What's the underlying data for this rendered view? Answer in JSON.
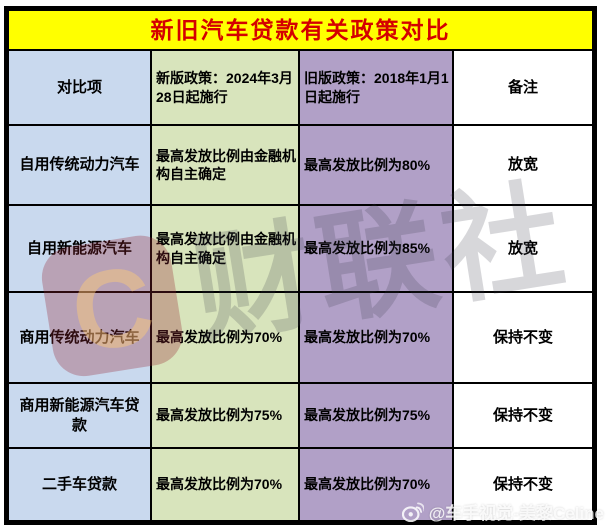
{
  "title": "新旧汽车贷款有关政策对比",
  "colors": {
    "title_bg": "#ffff00",
    "title_text": "#d40000",
    "col_item_bg": "#c9d9ee",
    "col_new_bg": "#d8e4bc",
    "col_old_bg": "#b1a0c7",
    "col_note_bg": "#ffffff",
    "border": "#000000"
  },
  "chart_data": {
    "type": "table",
    "title": "新旧汽车贷款有关政策对比",
    "columns": [
      "对比项",
      "新版政策：2024年3月28日起施行",
      "旧版政策：2018年1月1日起施行",
      "备注"
    ],
    "rows": [
      [
        "自用传统动力汽车",
        "最高发放比例由金融机构自主确定",
        "最高发放比例为80%",
        "放宽"
      ],
      [
        "自用新能源汽车",
        "最高发放比例由金融机构自主确定",
        "最高发放比例为85%",
        "放宽"
      ],
      [
        "商用传统动力汽车",
        "最高发放比例为70%",
        "最高发放比例为70%",
        "保持不变"
      ],
      [
        "商用新能源汽车贷款",
        "最高发放比例为75%",
        "最高发放比例为75%",
        "保持不变"
      ],
      [
        "二手车贷款",
        "最高发放比例为70%",
        "最高发放比例为70%",
        "保持不变"
      ]
    ]
  },
  "watermarks": {
    "center_text": "财联社",
    "center_logo_letter": "C",
    "credit_icon": "weibo-icon",
    "credit_text": "@车手视觉-美黎Celine"
  }
}
